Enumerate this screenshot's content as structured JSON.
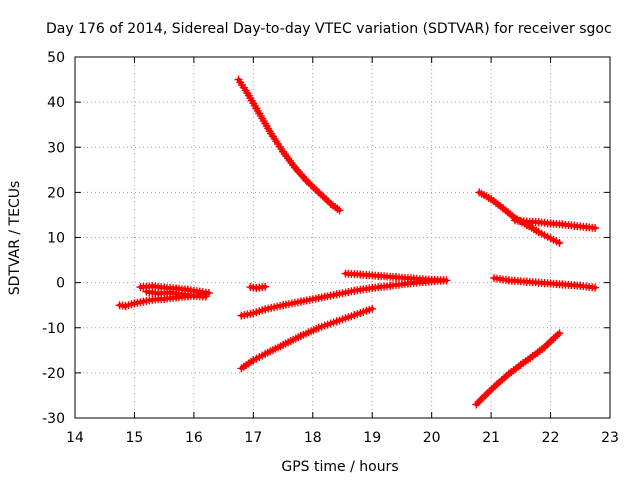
{
  "chart_data": {
    "type": "scatter",
    "title": "Day 176 of 2014, Sidereal Day-to-day VTEC variation (SDTVAR) for receiver sgoc",
    "xlabel": "GPS time / hours",
    "ylabel": "SDTVAR / TECUs",
    "xlim": [
      14,
      23
    ],
    "ylim": [
      -30,
      50
    ],
    "x_ticks": [
      "14",
      "15",
      "16",
      "17",
      "18",
      "19",
      "20",
      "21",
      "22",
      "23"
    ],
    "y_ticks": [
      "50",
      "40",
      "30",
      "20",
      "10",
      "0",
      "-10",
      "-20",
      "-30"
    ],
    "grid": true,
    "legend": "none",
    "marker": "plus",
    "color": "#ff0000",
    "series": [
      {
        "x": [
          14.75,
          14.85,
          15.0,
          15.15,
          15.3,
          15.5,
          15.7,
          15.9,
          16.1,
          16.2
        ],
        "y": [
          -5,
          -5.2,
          -4.6,
          -4.2,
          -3.8,
          -3.6,
          -3.3,
          -3.0,
          -2.7,
          -2.6
        ]
      },
      {
        "x": [
          15.1,
          15.3,
          15.5,
          15.7,
          15.9,
          16.1,
          16.25
        ],
        "y": [
          -1.0,
          -0.8,
          -1.1,
          -1.3,
          -1.6,
          -2.0,
          -2.3
        ]
      },
      {
        "x": [
          15.2,
          15.4,
          15.6,
          15.8,
          16.0,
          16.2
        ],
        "y": [
          -2.0,
          -2.4,
          -2.2,
          -2.6,
          -2.9,
          -3.1
        ]
      },
      {
        "x": [
          16.95,
          17.05,
          17.2
        ],
        "y": [
          -1.0,
          -1.2,
          -0.9
        ]
      },
      {
        "x": [
          16.75,
          16.9,
          17.1,
          17.3,
          17.5,
          17.7,
          17.9,
          18.1,
          18.3
        ],
        "y": [
          45,
          42,
          37.5,
          33,
          29,
          25.5,
          22.5,
          20,
          17.5
        ]
      },
      {
        "x": [
          18.3,
          18.45
        ],
        "y": [
          17.5,
          16
        ]
      },
      {
        "x": [
          16.8,
          17.0,
          17.2,
          17.5,
          17.8,
          18.1,
          18.4,
          18.7,
          19.0
        ],
        "y": [
          -19,
          -17.2,
          -15.8,
          -13.8,
          -11.8,
          -10.0,
          -8.6,
          -7.2,
          -5.8
        ]
      },
      {
        "x": [
          16.8,
          17.0,
          17.2,
          17.5,
          17.8,
          18.1,
          18.4,
          18.7,
          19.0,
          19.3,
          19.6,
          19.9,
          20.2
        ],
        "y": [
          -7.3,
          -6.8,
          -5.9,
          -5.0,
          -4.2,
          -3.4,
          -2.6,
          -1.8,
          -1.2,
          -0.7,
          -0.2,
          0.2,
          0.5
        ]
      },
      {
        "x": [
          18.55,
          18.8,
          19.1,
          19.4,
          19.7,
          20.0,
          20.25
        ],
        "y": [
          2.0,
          1.8,
          1.5,
          1.2,
          0.9,
          0.6,
          0.5
        ]
      },
      {
        "x": [
          20.8,
          21.0,
          21.2,
          21.4,
          21.6,
          21.8,
          22.0,
          22.15
        ],
        "y": [
          20,
          18.5,
          16.5,
          14.3,
          12.8,
          11.2,
          9.8,
          8.8
        ]
      },
      {
        "x": [
          21.4,
          21.6,
          21.8,
          22.0,
          22.2,
          22.4,
          22.6,
          22.75
        ],
        "y": [
          13.8,
          13.5,
          13.4,
          13.1,
          12.9,
          12.6,
          12.3,
          12.1
        ]
      },
      {
        "x": [
          21.05,
          21.3,
          21.6,
          21.9,
          22.2,
          22.5,
          22.75
        ],
        "y": [
          1.0,
          0.5,
          0.2,
          -0.1,
          -0.4,
          -0.7,
          -1.1
        ]
      },
      {
        "x": [
          20.75,
          20.9,
          21.1,
          21.3,
          21.5,
          21.7,
          21.9,
          22.05,
          22.15
        ],
        "y": [
          -27,
          -25,
          -22.5,
          -20.2,
          -18.2,
          -16.3,
          -14.3,
          -12.4,
          -11.2
        ]
      }
    ]
  }
}
